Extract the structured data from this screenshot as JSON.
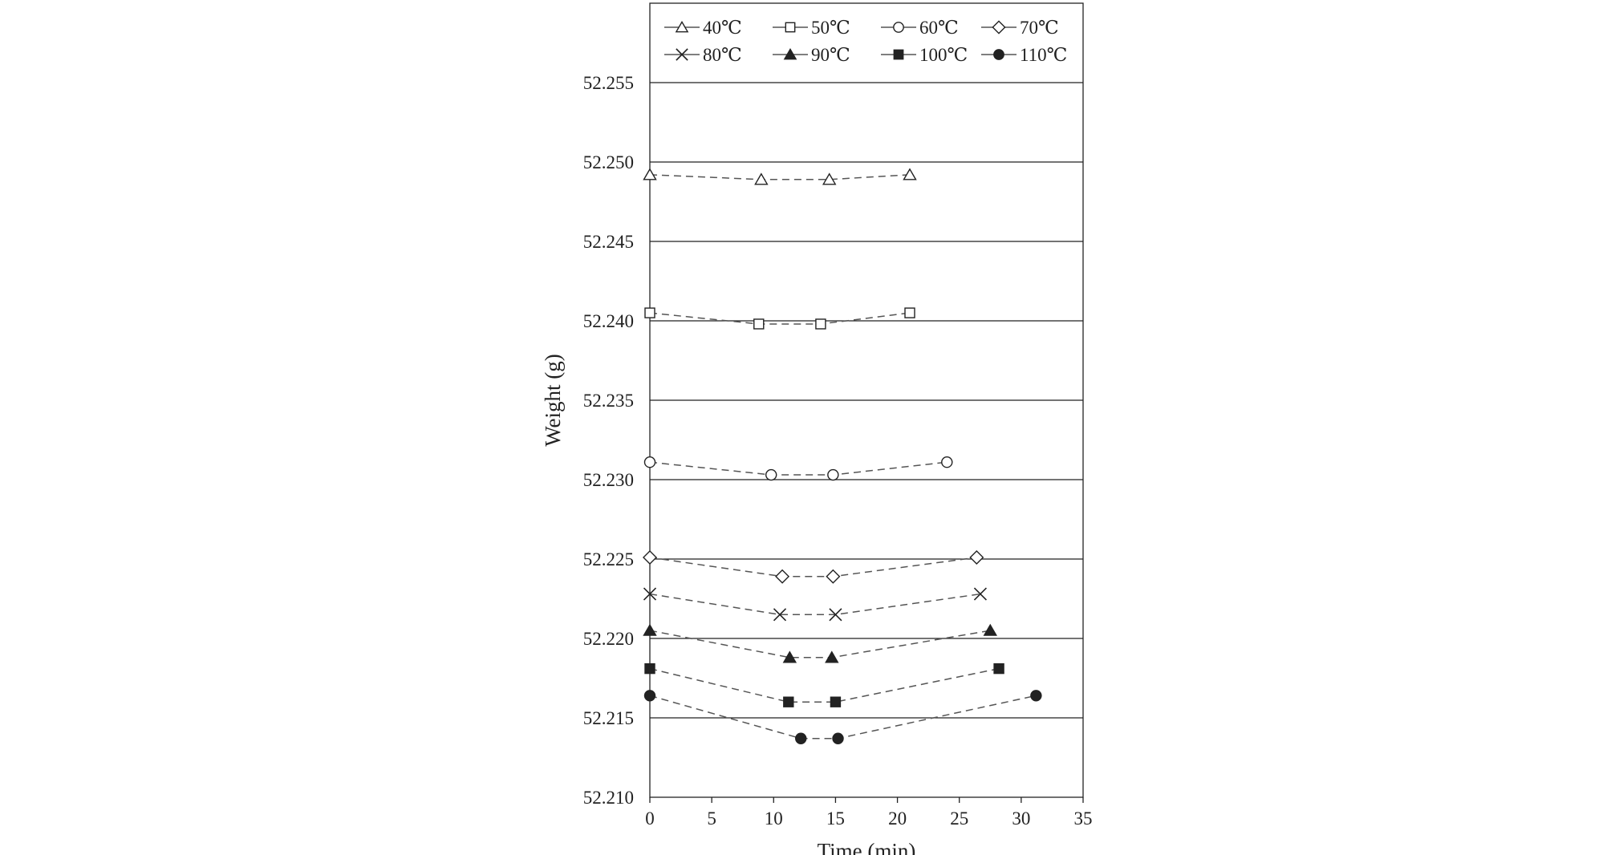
{
  "chart_data": {
    "type": "line",
    "xlabel": "Time (min)",
    "ylabel": "Weight (g)",
    "xlim": [
      0,
      35
    ],
    "ylim": [
      52.21,
      52.26
    ],
    "xticks": [
      "0",
      "5",
      "10",
      "15",
      "20",
      "25",
      "30",
      "35"
    ],
    "yticks": [
      "52.210",
      "52.215",
      "52.220",
      "52.225",
      "52.230",
      "52.235",
      "52.240",
      "52.245",
      "52.250",
      "52.255"
    ],
    "grid": "horizontal major gridlines",
    "legend_position": "top inside plot area",
    "line_style": "dashed",
    "line_color": "#555555",
    "marker_color": "#222222",
    "series": [
      {
        "name": "40℃",
        "marker": "open-triangle-icon",
        "x": [
          0,
          9,
          14.5,
          21
        ],
        "y": [
          52.2492,
          52.2489,
          52.2489,
          52.2492
        ]
      },
      {
        "name": "50℃",
        "marker": "open-square-icon",
        "x": [
          0,
          8.8,
          13.8,
          21
        ],
        "y": [
          52.2405,
          52.2398,
          52.2398,
          52.2405
        ]
      },
      {
        "name": "60℃",
        "marker": "open-circle-icon",
        "x": [
          0,
          9.8,
          14.8,
          24
        ],
        "y": [
          52.2311,
          52.2303,
          52.2303,
          52.2311
        ]
      },
      {
        "name": "70℃",
        "marker": "open-diamond-icon",
        "x": [
          0,
          10.7,
          14.8,
          26.4
        ],
        "y": [
          52.2251,
          52.2239,
          52.2239,
          52.2251
        ]
      },
      {
        "name": "80℃",
        "marker": "cross-icon",
        "x": [
          0,
          10.5,
          15,
          26.7
        ],
        "y": [
          52.2228,
          52.2215,
          52.2215,
          52.2228
        ]
      },
      {
        "name": "90℃",
        "marker": "filled-triangle-icon",
        "x": [
          0,
          11.3,
          14.7,
          27.5
        ],
        "y": [
          52.2205,
          52.2188,
          52.2188,
          52.2205
        ]
      },
      {
        "name": "100℃",
        "marker": "filled-square-icon",
        "x": [
          0,
          11.2,
          15,
          28.2
        ],
        "y": [
          52.2181,
          52.216,
          52.216,
          52.2181
        ]
      },
      {
        "name": "110℃",
        "marker": "filled-circle-icon",
        "x": [
          0,
          12.2,
          15.2,
          31.2
        ],
        "y": [
          52.2164,
          52.2137,
          52.2137,
          52.2164
        ]
      }
    ]
  }
}
